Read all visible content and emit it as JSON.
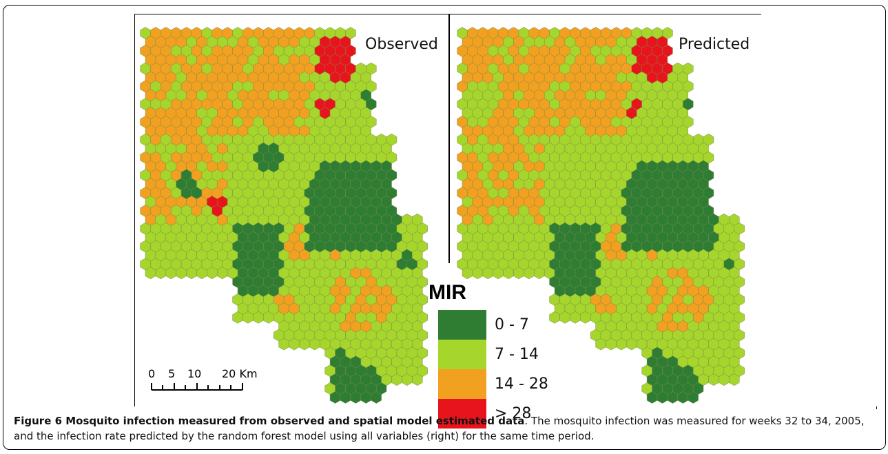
{
  "panels": {
    "left_label": "Observed",
    "right_label": "Predicted"
  },
  "legend": {
    "title": "MIR",
    "items": [
      {
        "label": "0 - 7",
        "color": "#2e7d32"
      },
      {
        "label": "7 - 14",
        "color": "#a6d62c"
      },
      {
        "label": "14 - 28",
        "color": "#f2a01f"
      },
      {
        "label": "> 28",
        "color": "#e8141c"
      }
    ]
  },
  "scalebar": {
    "ticks": [
      "0",
      "5",
      "10",
      "20 Km"
    ]
  },
  "caption": {
    "figure_label": "Figure 6 Mosquito infection measured from observed and spatial model estimated data",
    "text": ". The mosquito infection was measured for weeks 32 to 34, 2005, and the infection rate predicted by the random forest model using all variables (right) for the same time period."
  }
}
